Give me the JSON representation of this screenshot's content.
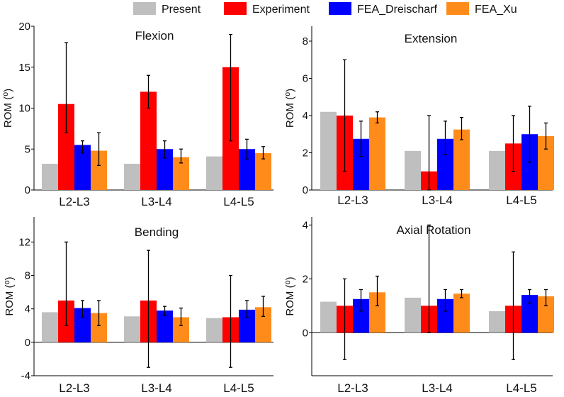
{
  "legend": [
    {
      "name": "Present",
      "color": "#bfbfbf"
    },
    {
      "name": "Experiment",
      "color": "#ff0000"
    },
    {
      "name": "FEA_Dreischarf",
      "color": "#0000ff"
    },
    {
      "name": "FEA_Xu",
      "color": "#ff8c1a"
    }
  ],
  "chart_data": [
    {
      "type": "bar",
      "title": "Flexion",
      "ylabel": "ROM (⁰)",
      "categories": [
        "L2-L3",
        "L3-L4",
        "L4-L5"
      ],
      "ylim": [
        0,
        20
      ],
      "yticks": [
        "0",
        "5",
        "10",
        "15",
        "20"
      ],
      "series": [
        {
          "name": "Present",
          "values": [
            3.2,
            3.2,
            4.1
          ],
          "err": [
            null,
            null,
            null
          ]
        },
        {
          "name": "Experiment",
          "values": [
            10.5,
            12.0,
            15.0
          ],
          "err": [
            [
              7.0,
              18.0
            ],
            [
              10.0,
              14.0
            ],
            [
              6.0,
              19.0
            ]
          ]
        },
        {
          "name": "FEA_Dreischarf",
          "values": [
            5.5,
            5.0,
            5.0
          ],
          "err": [
            [
              4.5,
              6.0
            ],
            [
              3.9,
              6.0
            ],
            [
              3.8,
              6.2
            ]
          ]
        },
        {
          "name": "FEA_Xu",
          "values": [
            4.8,
            4.0,
            4.5
          ],
          "err": [
            [
              3.0,
              7.0
            ],
            [
              3.3,
              5.0
            ],
            [
              3.8,
              5.3
            ]
          ]
        }
      ]
    },
    {
      "type": "bar",
      "title": "Extension",
      "ylabel": "ROM (⁰)",
      "categories": [
        "L2-L3",
        "L3-L4",
        "L4-L5"
      ],
      "ylim": [
        0,
        8.8
      ],
      "yticks": [
        "0",
        "2",
        "4",
        "6",
        "8"
      ],
      "series": [
        {
          "name": "Present",
          "values": [
            4.2,
            2.1,
            2.1
          ],
          "err": [
            null,
            null,
            null
          ]
        },
        {
          "name": "Experiment",
          "values": [
            4.0,
            1.0,
            2.5
          ],
          "err": [
            [
              1.0,
              7.0
            ],
            [
              0.0,
              4.0
            ],
            [
              1.0,
              4.0
            ]
          ]
        },
        {
          "name": "FEA_Dreischarf",
          "values": [
            2.75,
            2.75,
            3.0
          ],
          "err": [
            [
              1.8,
              3.7
            ],
            [
              1.9,
              3.7
            ],
            [
              1.5,
              4.5
            ]
          ]
        },
        {
          "name": "FEA_Xu",
          "values": [
            3.9,
            3.25,
            2.9
          ],
          "err": [
            [
              3.6,
              4.2
            ],
            [
              2.7,
              3.9
            ],
            [
              2.2,
              3.6
            ]
          ]
        }
      ]
    },
    {
      "type": "bar",
      "title": "Bending",
      "ylabel": "ROM (⁰)",
      "categories": [
        "L2-L3",
        "L3-L4",
        "L4-L5"
      ],
      "ylim": [
        -4,
        15
      ],
      "yticks": [
        "-4",
        "0",
        "4",
        "8",
        "12"
      ],
      "series": [
        {
          "name": "Present",
          "values": [
            3.6,
            3.1,
            2.9
          ],
          "err": [
            null,
            null,
            null
          ]
        },
        {
          "name": "Experiment",
          "values": [
            5.0,
            5.0,
            3.0
          ],
          "err": [
            [
              2.0,
              12.0
            ],
            [
              -3.0,
              11.0
            ],
            [
              -3.0,
              8.0
            ]
          ]
        },
        {
          "name": "FEA_Dreischarf",
          "values": [
            4.1,
            3.8,
            3.9
          ],
          "err": [
            [
              3.0,
              5.0
            ],
            [
              3.2,
              4.3
            ],
            [
              3.0,
              5.0
            ]
          ]
        },
        {
          "name": "FEA_Xu",
          "values": [
            3.5,
            3.0,
            4.2
          ],
          "err": [
            [
              2.0,
              5.0
            ],
            [
              2.0,
              4.1
            ],
            [
              3.1,
              5.5
            ]
          ]
        }
      ]
    },
    {
      "type": "bar",
      "title": "Axial Rotation",
      "ylabel": "ROM (⁰)",
      "categories": [
        "L2-L3",
        "L3-L4",
        "L4-L5"
      ],
      "ylim": [
        -1.6,
        4.3
      ],
      "yticks": [
        "0",
        "2",
        "4"
      ],
      "series": [
        {
          "name": "Present",
          "values": [
            1.15,
            1.3,
            0.8
          ],
          "err": [
            null,
            null,
            null
          ]
        },
        {
          "name": "Experiment",
          "values": [
            1.0,
            1.0,
            1.0
          ],
          "err": [
            [
              -1.0,
              2.0
            ],
            [
              0.0,
              4.0
            ],
            [
              -1.0,
              3.0
            ]
          ]
        },
        {
          "name": "FEA_Dreischarf",
          "values": [
            1.25,
            1.25,
            1.4
          ],
          "err": [
            [
              0.8,
              1.6
            ],
            [
              0.8,
              1.6
            ],
            [
              1.1,
              1.6
            ]
          ]
        },
        {
          "name": "FEA_Xu",
          "values": [
            1.5,
            1.45,
            1.35
          ],
          "err": [
            [
              1.0,
              2.1
            ],
            [
              1.3,
              1.6
            ],
            [
              1.0,
              1.6
            ]
          ]
        }
      ]
    }
  ]
}
